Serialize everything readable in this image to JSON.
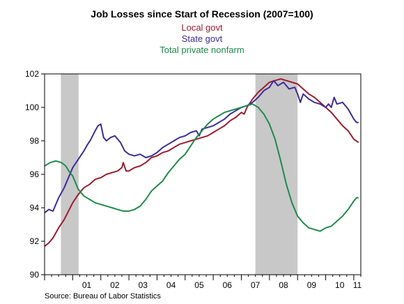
{
  "chart_data": {
    "type": "line",
    "title": "Job Losses since Start of Recession (2007=100)",
    "xlabel": "",
    "ylabel": "",
    "source": "Source:  Bureau of Labor Statistics",
    "xlim": [
      2000.0,
      2011.25
    ],
    "ylim": [
      90,
      102
    ],
    "y_ticks": [
      90,
      92,
      94,
      96,
      98,
      100,
      102
    ],
    "x_tick_labels": [
      {
        "x": 2001.0,
        "label": "01"
      },
      {
        "x": 2002.0,
        "label": "02"
      },
      {
        "x": 2003.0,
        "label": "03"
      },
      {
        "x": 2004.0,
        "label": "04"
      },
      {
        "x": 2005.0,
        "label": "05"
      },
      {
        "x": 2006.0,
        "label": "06"
      },
      {
        "x": 2007.0,
        "label": "07"
      },
      {
        "x": 2008.0,
        "label": "08"
      },
      {
        "x": 2009.0,
        "label": "09"
      },
      {
        "x": 2010.0,
        "label": "10"
      },
      {
        "x": 2011.0,
        "label": "11"
      }
    ],
    "recessions": [
      {
        "start": 2000.58,
        "end": 2001.21
      },
      {
        "start": 2007.5,
        "end": 2009.0
      }
    ],
    "grid": false,
    "legend_position": "top-center",
    "series": [
      {
        "name": "Local govt",
        "color": "#9e1b32",
        "points": [
          [
            2000.0,
            91.7
          ],
          [
            2000.15,
            91.9
          ],
          [
            2000.3,
            92.2
          ],
          [
            2000.5,
            92.8
          ],
          [
            2000.7,
            93.3
          ],
          [
            2000.85,
            93.8
          ],
          [
            2001.0,
            94.3
          ],
          [
            2001.2,
            94.8
          ],
          [
            2001.4,
            95.2
          ],
          [
            2001.6,
            95.4
          ],
          [
            2001.8,
            95.7
          ],
          [
            2002.0,
            95.8
          ],
          [
            2002.2,
            96.0
          ],
          [
            2002.4,
            96.1
          ],
          [
            2002.6,
            96.2
          ],
          [
            2002.75,
            96.4
          ],
          [
            2002.8,
            96.7
          ],
          [
            2002.9,
            96.2
          ],
          [
            2003.0,
            96.2
          ],
          [
            2003.2,
            96.4
          ],
          [
            2003.4,
            96.5
          ],
          [
            2003.6,
            96.7
          ],
          [
            2003.8,
            97.0
          ],
          [
            2004.0,
            97.1
          ],
          [
            2004.2,
            97.3
          ],
          [
            2004.4,
            97.4
          ],
          [
            2004.6,
            97.6
          ],
          [
            2004.8,
            97.8
          ],
          [
            2005.0,
            97.9
          ],
          [
            2005.2,
            98.0
          ],
          [
            2005.4,
            98.1
          ],
          [
            2005.6,
            98.2
          ],
          [
            2005.8,
            98.3
          ],
          [
            2006.0,
            98.5
          ],
          [
            2006.2,
            98.7
          ],
          [
            2006.4,
            98.9
          ],
          [
            2006.6,
            99.2
          ],
          [
            2006.8,
            99.4
          ],
          [
            2007.0,
            99.7
          ],
          [
            2007.1,
            99.6
          ],
          [
            2007.2,
            100.0
          ],
          [
            2007.4,
            100.5
          ],
          [
            2007.6,
            100.9
          ],
          [
            2007.8,
            101.2
          ],
          [
            2008.0,
            101.5
          ],
          [
            2008.2,
            101.6
          ],
          [
            2008.4,
            101.7
          ],
          [
            2008.6,
            101.6
          ],
          [
            2008.8,
            101.5
          ],
          [
            2009.0,
            101.4
          ],
          [
            2009.2,
            101.1
          ],
          [
            2009.4,
            100.8
          ],
          [
            2009.6,
            100.6
          ],
          [
            2009.8,
            100.3
          ],
          [
            2010.0,
            100.0
          ],
          [
            2010.2,
            99.7
          ],
          [
            2010.4,
            99.3
          ],
          [
            2010.6,
            98.9
          ],
          [
            2010.8,
            98.6
          ],
          [
            2011.0,
            98.1
          ],
          [
            2011.17,
            97.9
          ]
        ]
      },
      {
        "name": "State govt",
        "color": "#3d2b9e",
        "points": [
          [
            2000.0,
            93.7
          ],
          [
            2000.15,
            93.9
          ],
          [
            2000.3,
            93.8
          ],
          [
            2000.4,
            94.2
          ],
          [
            2000.5,
            94.6
          ],
          [
            2000.7,
            95.2
          ],
          [
            2000.85,
            95.8
          ],
          [
            2001.0,
            96.4
          ],
          [
            2001.2,
            96.9
          ],
          [
            2001.4,
            97.4
          ],
          [
            2001.5,
            97.7
          ],
          [
            2001.65,
            98.1
          ],
          [
            2001.8,
            98.6
          ],
          [
            2001.9,
            98.9
          ],
          [
            2002.0,
            99.0
          ],
          [
            2002.1,
            98.2
          ],
          [
            2002.2,
            98.0
          ],
          [
            2002.35,
            98.2
          ],
          [
            2002.5,
            98.3
          ],
          [
            2002.7,
            97.9
          ],
          [
            2002.85,
            97.4
          ],
          [
            2003.0,
            97.2
          ],
          [
            2003.2,
            97.1
          ],
          [
            2003.4,
            97.2
          ],
          [
            2003.6,
            97.0
          ],
          [
            2003.8,
            97.1
          ],
          [
            2004.0,
            97.3
          ],
          [
            2004.2,
            97.6
          ],
          [
            2004.4,
            97.8
          ],
          [
            2004.6,
            98.0
          ],
          [
            2004.8,
            98.2
          ],
          [
            2005.0,
            98.3
          ],
          [
            2005.2,
            98.5
          ],
          [
            2005.4,
            98.6
          ],
          [
            2005.5,
            98.3
          ],
          [
            2005.6,
            98.7
          ],
          [
            2005.8,
            98.8
          ],
          [
            2006.0,
            98.9
          ],
          [
            2006.2,
            99.1
          ],
          [
            2006.4,
            99.3
          ],
          [
            2006.6,
            99.6
          ],
          [
            2006.8,
            99.8
          ],
          [
            2007.0,
            100.0
          ],
          [
            2007.2,
            100.1
          ],
          [
            2007.4,
            100.3
          ],
          [
            2007.6,
            100.6
          ],
          [
            2007.8,
            101.0
          ],
          [
            2008.0,
            101.2
          ],
          [
            2008.15,
            101.6
          ],
          [
            2008.3,
            101.3
          ],
          [
            2008.5,
            101.5
          ],
          [
            2008.7,
            101.1
          ],
          [
            2008.9,
            101.2
          ],
          [
            2009.0,
            100.8
          ],
          [
            2009.1,
            100.3
          ],
          [
            2009.2,
            100.8
          ],
          [
            2009.4,
            100.5
          ],
          [
            2009.6,
            100.3
          ],
          [
            2009.8,
            100.2
          ],
          [
            2010.0,
            100.0
          ],
          [
            2010.1,
            100.2
          ],
          [
            2010.2,
            100.0
          ],
          [
            2010.3,
            100.6
          ],
          [
            2010.4,
            100.2
          ],
          [
            2010.6,
            100.3
          ],
          [
            2010.8,
            99.9
          ],
          [
            2011.0,
            99.3
          ],
          [
            2011.1,
            99.1
          ],
          [
            2011.17,
            99.1
          ]
        ]
      },
      {
        "name": "Total private nonfarm",
        "color": "#1e8a4c",
        "points": [
          [
            2000.0,
            96.5
          ],
          [
            2000.2,
            96.7
          ],
          [
            2000.4,
            96.8
          ],
          [
            2000.6,
            96.7
          ],
          [
            2000.75,
            96.5
          ],
          [
            2000.9,
            96.1
          ],
          [
            2001.0,
            95.9
          ],
          [
            2001.2,
            95.1
          ],
          [
            2001.4,
            94.7
          ],
          [
            2001.6,
            94.5
          ],
          [
            2001.8,
            94.3
          ],
          [
            2002.0,
            94.2
          ],
          [
            2002.2,
            94.1
          ],
          [
            2002.4,
            94.0
          ],
          [
            2002.6,
            93.9
          ],
          [
            2002.8,
            93.8
          ],
          [
            2003.0,
            93.8
          ],
          [
            2003.2,
            93.9
          ],
          [
            2003.4,
            94.1
          ],
          [
            2003.6,
            94.5
          ],
          [
            2003.8,
            95.0
          ],
          [
            2004.0,
            95.3
          ],
          [
            2004.2,
            95.6
          ],
          [
            2004.4,
            96.1
          ],
          [
            2004.6,
            96.5
          ],
          [
            2004.8,
            96.9
          ],
          [
            2005.0,
            97.2
          ],
          [
            2005.2,
            97.7
          ],
          [
            2005.4,
            98.2
          ],
          [
            2005.6,
            98.6
          ],
          [
            2005.8,
            99.0
          ],
          [
            2006.0,
            99.3
          ],
          [
            2006.2,
            99.5
          ],
          [
            2006.4,
            99.7
          ],
          [
            2006.6,
            99.8
          ],
          [
            2006.8,
            99.9
          ],
          [
            2007.0,
            100.0
          ],
          [
            2007.2,
            100.1
          ],
          [
            2007.4,
            100.2
          ],
          [
            2007.6,
            100.0
          ],
          [
            2007.8,
            99.6
          ],
          [
            2008.0,
            99.0
          ],
          [
            2008.2,
            98.1
          ],
          [
            2008.4,
            96.8
          ],
          [
            2008.6,
            95.4
          ],
          [
            2008.8,
            94.3
          ],
          [
            2009.0,
            93.5
          ],
          [
            2009.2,
            93.1
          ],
          [
            2009.4,
            92.8
          ],
          [
            2009.6,
            92.7
          ],
          [
            2009.8,
            92.6
          ],
          [
            2010.0,
            92.8
          ],
          [
            2010.2,
            92.9
          ],
          [
            2010.4,
            93.2
          ],
          [
            2010.6,
            93.5
          ],
          [
            2010.8,
            93.9
          ],
          [
            2011.0,
            94.4
          ],
          [
            2011.1,
            94.6
          ],
          [
            2011.17,
            94.6
          ]
        ]
      }
    ]
  }
}
